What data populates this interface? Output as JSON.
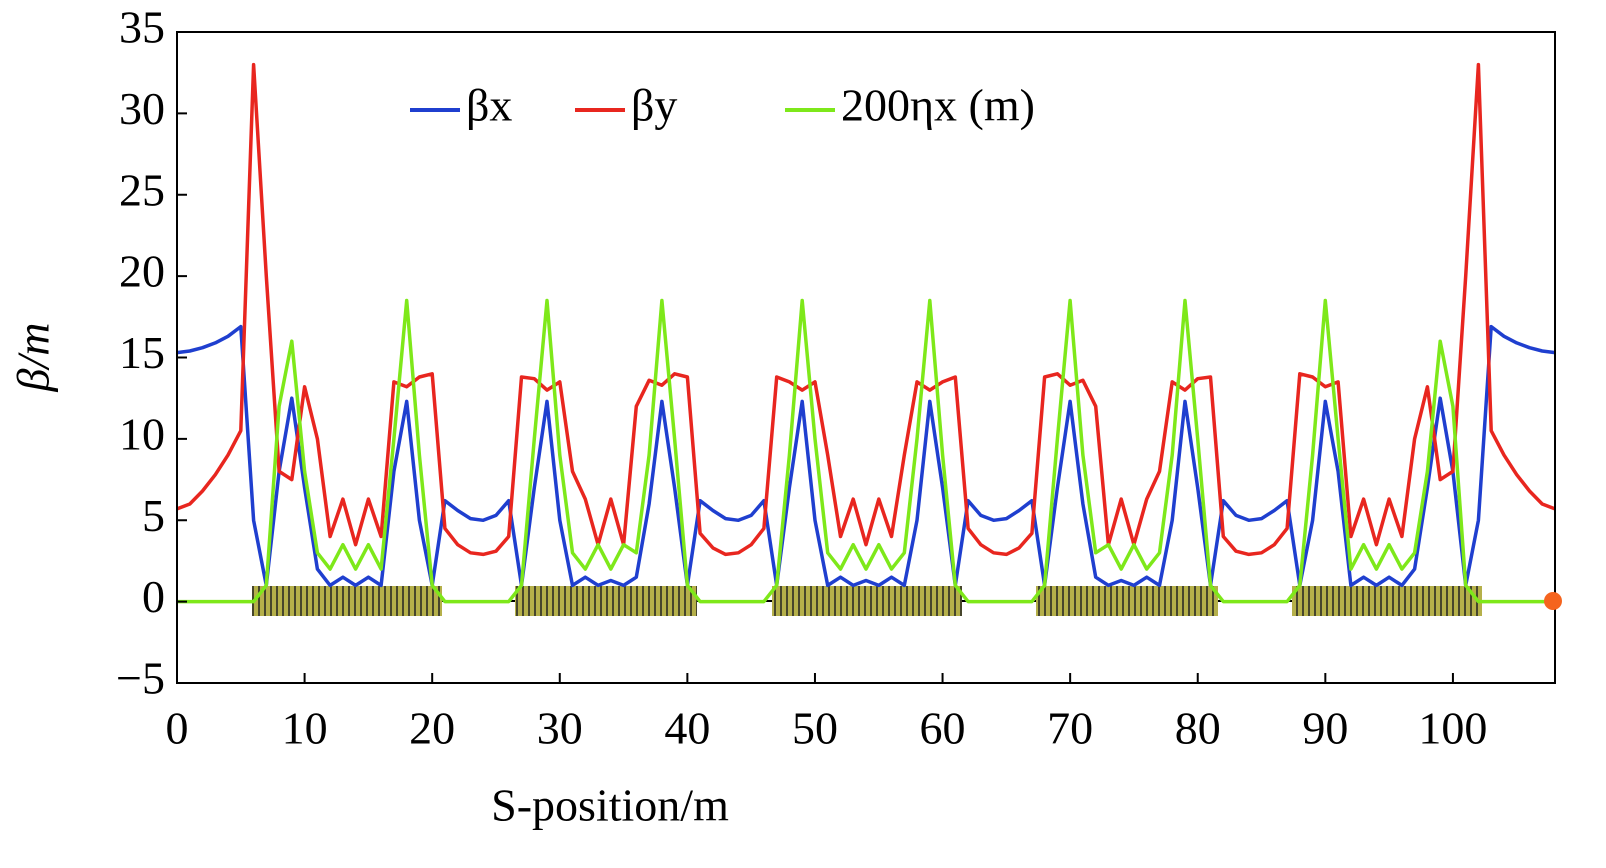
{
  "chart_data": {
    "type": "line",
    "xlabel": "S-position/m",
    "ylabel": "β/m",
    "x": [
      0,
      1,
      2,
      3,
      4,
      5,
      6,
      7,
      8,
      9,
      10,
      11,
      12,
      13,
      14,
      15,
      16,
      17,
      18,
      19,
      20,
      21,
      22,
      23,
      24,
      25,
      26,
      27,
      28,
      29,
      30,
      31,
      32,
      33,
      34,
      35,
      36,
      37,
      38,
      39,
      40,
      41,
      42,
      43,
      44,
      45,
      46,
      47,
      48,
      49,
      50,
      51,
      52,
      53,
      54,
      55,
      56,
      57,
      58,
      59,
      60,
      61,
      62,
      63,
      64,
      65,
      66,
      67,
      68,
      69,
      70,
      71,
      72,
      73,
      74,
      75,
      76,
      77,
      78,
      79,
      80,
      81,
      82,
      83,
      84,
      85,
      86,
      87,
      88,
      89,
      90,
      91,
      92,
      93,
      94,
      95,
      96,
      97,
      98,
      99,
      100,
      101,
      102,
      103,
      104,
      105,
      106,
      107,
      108
    ],
    "series": [
      {
        "name": "βx",
        "color": "#1f3fcf",
        "values": [
          15.3,
          15.4,
          15.6,
          15.9,
          16.3,
          16.9,
          5,
          1,
          8,
          12.5,
          7,
          2,
          1,
          1.5,
          1,
          1.5,
          1,
          8,
          12.3,
          5,
          1,
          6.2,
          5.6,
          5.1,
          5.0,
          5.3,
          6.2,
          1,
          7,
          12.3,
          5,
          1,
          1.5,
          1,
          1.3,
          1,
          1.5,
          6,
          12.3,
          7,
          1,
          6.2,
          5.6,
          5.1,
          5.0,
          5.3,
          6.2,
          1,
          7,
          12.3,
          5,
          1,
          1.5,
          1,
          1.3,
          1,
          1.5,
          1,
          5,
          12.3,
          7,
          1,
          6.2,
          5.3,
          5.0,
          5.1,
          5.6,
          6.2,
          1,
          7,
          12.3,
          6,
          1.5,
          1,
          1.3,
          1,
          1.5,
          1,
          5,
          12.3,
          7,
          1,
          6.2,
          5.3,
          5.0,
          5.1,
          5.6,
          6.2,
          1,
          5,
          12.3,
          8,
          1,
          1.5,
          1,
          1.5,
          1,
          2,
          7,
          12.5,
          8,
          1,
          5,
          16.9,
          16.3,
          15.9,
          15.6,
          15.4,
          15.3
        ]
      },
      {
        "name": "βy",
        "color": "#e8261f",
        "values": [
          5.7,
          6,
          6.8,
          7.8,
          9,
          10.5,
          33,
          20,
          8,
          7.5,
          13.2,
          10,
          4,
          6.3,
          3.5,
          6.3,
          4,
          13.5,
          13.2,
          13.8,
          14,
          4.5,
          3.5,
          3,
          2.9,
          3.1,
          4,
          13.8,
          13.7,
          13,
          13.5,
          8,
          6.3,
          3.5,
          6.3,
          3.5,
          12,
          13.6,
          13.3,
          14,
          13.8,
          4.2,
          3.3,
          2.9,
          3.0,
          3.5,
          4.5,
          13.8,
          13.5,
          13,
          13.5,
          9,
          4,
          6.3,
          3.5,
          6.3,
          4,
          9,
          13.5,
          13,
          13.5,
          13.8,
          4.5,
          3.5,
          3.0,
          2.9,
          3.3,
          4.2,
          13.8,
          14,
          13.3,
          13.6,
          12,
          3.5,
          6.3,
          3.5,
          6.3,
          8,
          13.5,
          13,
          13.7,
          13.8,
          4,
          3.1,
          2.9,
          3,
          3.5,
          4.5,
          14,
          13.8,
          13.2,
          13.5,
          4,
          6.3,
          3.5,
          6.3,
          4,
          10,
          13.2,
          7.5,
          8,
          20,
          33,
          10.5,
          9,
          7.8,
          6.8,
          6,
          5.7
        ]
      },
      {
        "name": "200ηx (m)",
        "color": "#7ee81a",
        "values": [
          0,
          0,
          0,
          0,
          0,
          0,
          0,
          1,
          12,
          16,
          8,
          3,
          2,
          3.5,
          2,
          3.5,
          2,
          10,
          18.5,
          9,
          1,
          0,
          0,
          0,
          0,
          0,
          0,
          1,
          10,
          18.5,
          9,
          3,
          2,
          3.5,
          2,
          3.5,
          3,
          9,
          18.5,
          10,
          1,
          0,
          0,
          0,
          0,
          0,
          0,
          1,
          9,
          18.5,
          10,
          3,
          2,
          3.5,
          2,
          3.5,
          2,
          3,
          10,
          18.5,
          9,
          1,
          0,
          0,
          0,
          0,
          0,
          0,
          1,
          10,
          18.5,
          9,
          3,
          3.5,
          2,
          3.5,
          2,
          3,
          9,
          18.5,
          10,
          1,
          0,
          0,
          0,
          0,
          0,
          0,
          1,
          9,
          18.5,
          10,
          2,
          3.5,
          2,
          3.5,
          2,
          3,
          8,
          16,
          12,
          1,
          0,
          0,
          0,
          0,
          0,
          0,
          0
        ]
      }
    ],
    "xlim": [
      0,
      108
    ],
    "xticks": [
      0,
      10,
      20,
      30,
      40,
      50,
      60,
      70,
      80,
      90,
      100
    ],
    "ylim": [
      -5,
      35
    ],
    "yticks": [
      {
        "value": -5,
        "label": "−5"
      },
      0,
      5,
      10,
      15,
      20,
      25,
      30,
      35
    ],
    "grid": false,
    "legend": "top"
  }
}
